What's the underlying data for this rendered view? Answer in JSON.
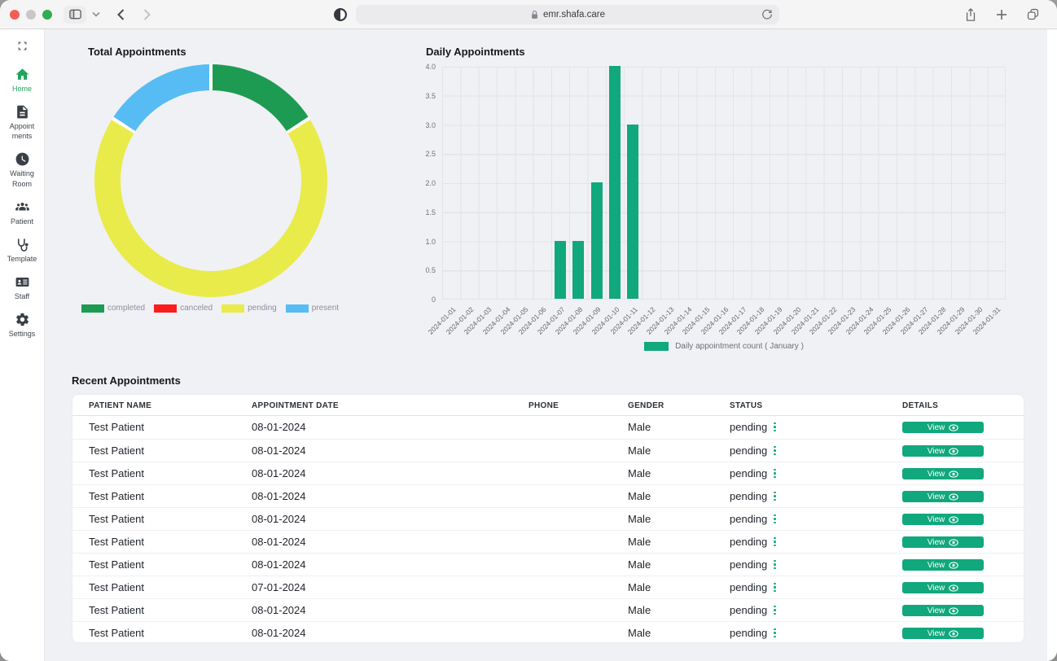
{
  "browser": {
    "url": "emr.shafa.care"
  },
  "sidebar": {
    "items": [
      {
        "id": "home",
        "label": "Home",
        "lines": [
          "Home"
        ],
        "active": true
      },
      {
        "id": "appointments",
        "label": "Appointments",
        "lines": [
          "Appoint",
          "ments"
        ],
        "active": false
      },
      {
        "id": "waiting",
        "label": "Waiting Room",
        "lines": [
          "Waiting",
          "Room"
        ],
        "active": false
      },
      {
        "id": "patient",
        "label": "Patient",
        "lines": [
          "Patient"
        ],
        "active": false
      },
      {
        "id": "template",
        "label": "Template",
        "lines": [
          "Template"
        ],
        "active": false
      },
      {
        "id": "staff",
        "label": "Staff",
        "lines": [
          "Staff"
        ],
        "active": false
      },
      {
        "id": "settings",
        "label": "Settings",
        "lines": [
          "Settings"
        ],
        "active": false
      }
    ]
  },
  "chart_data": [
    {
      "type": "pie",
      "subtype": "doughnut",
      "title": "Total Appointments",
      "labels": [
        "completed",
        "canceled",
        "pending",
        "present"
      ],
      "values_percent": [
        16,
        0,
        68,
        16
      ],
      "colors": [
        "#1e9b53",
        "#fb1d1d",
        "#e8eb4a",
        "#57bcf4"
      ],
      "legend_position": "bottom"
    },
    {
      "type": "bar",
      "title": "Daily Appointments",
      "categories": [
        "2024-01-01",
        "2024-01-02",
        "2024-01-03",
        "2024-01-04",
        "2024-01-05",
        "2024-01-06",
        "2024-01-07",
        "2024-01-08",
        "2024-01-09",
        "2024-01-10",
        "2024-01-11",
        "2024-01-12",
        "2024-01-13",
        "2024-01-14",
        "2024-01-15",
        "2024-01-16",
        "2024-01-17",
        "2024-01-18",
        "2024-01-19",
        "2024-01-20",
        "2024-01-21",
        "2024-01-22",
        "2024-01-23",
        "2024-01-24",
        "2024-01-25",
        "2024-01-26",
        "2024-01-27",
        "2024-01-28",
        "2024-01-29",
        "2024-01-30",
        "2024-01-31"
      ],
      "values": [
        0,
        0,
        0,
        0,
        0,
        0,
        1,
        1,
        2,
        4,
        3,
        0,
        0,
        0,
        0,
        0,
        0,
        0,
        0,
        0,
        0,
        0,
        0,
        0,
        0,
        0,
        0,
        0,
        0,
        0,
        0
      ],
      "ylim": [
        0,
        4
      ],
      "yticks": [
        "0",
        "0.5",
        "1.0",
        "1.5",
        "2.0",
        "2.5",
        "3.0",
        "3.5",
        "4.0"
      ],
      "bar_color": "#10a87c",
      "grid": true,
      "legend": "Daily appointment count ( January )",
      "legend_position": "bottom",
      "xlabel": "",
      "ylabel": ""
    }
  ],
  "table": {
    "title": "Recent Appointments",
    "columns": [
      "PATIENT NAME",
      "APPOINTMENT DATE",
      "PHONE",
      "GENDER",
      "STATUS",
      "DETAILS"
    ],
    "view_label": "View",
    "rows": [
      {
        "patient": "Test Patient",
        "date": "08-01-2024",
        "phone": "",
        "gender": "Male",
        "status": "pending",
        "action": "View"
      },
      {
        "patient": "Test Patient",
        "date": "08-01-2024",
        "phone": "",
        "gender": "Male",
        "status": "pending",
        "action": "View"
      },
      {
        "patient": "Test Patient",
        "date": "08-01-2024",
        "phone": "",
        "gender": "Male",
        "status": "pending",
        "action": "View"
      },
      {
        "patient": "Test Patient",
        "date": "08-01-2024",
        "phone": "",
        "gender": "Male",
        "status": "pending",
        "action": "View"
      },
      {
        "patient": "Test Patient",
        "date": "08-01-2024",
        "phone": "",
        "gender": "Male",
        "status": "pending",
        "action": "View"
      },
      {
        "patient": "Test Patient",
        "date": "08-01-2024",
        "phone": "",
        "gender": "Male",
        "status": "pending",
        "action": "View"
      },
      {
        "patient": "Test Patient",
        "date": "08-01-2024",
        "phone": "",
        "gender": "Male",
        "status": "pending",
        "action": "View"
      },
      {
        "patient": "Test Patient",
        "date": "07-01-2024",
        "phone": "",
        "gender": "Male",
        "status": "pending",
        "action": "View"
      },
      {
        "patient": "Test Patient",
        "date": "08-01-2024",
        "phone": "",
        "gender": "Male",
        "status": "pending",
        "action": "View"
      },
      {
        "patient": "Test Patient",
        "date": "08-01-2024",
        "phone": "",
        "gender": "Male",
        "status": "pending",
        "action": "View"
      }
    ]
  }
}
